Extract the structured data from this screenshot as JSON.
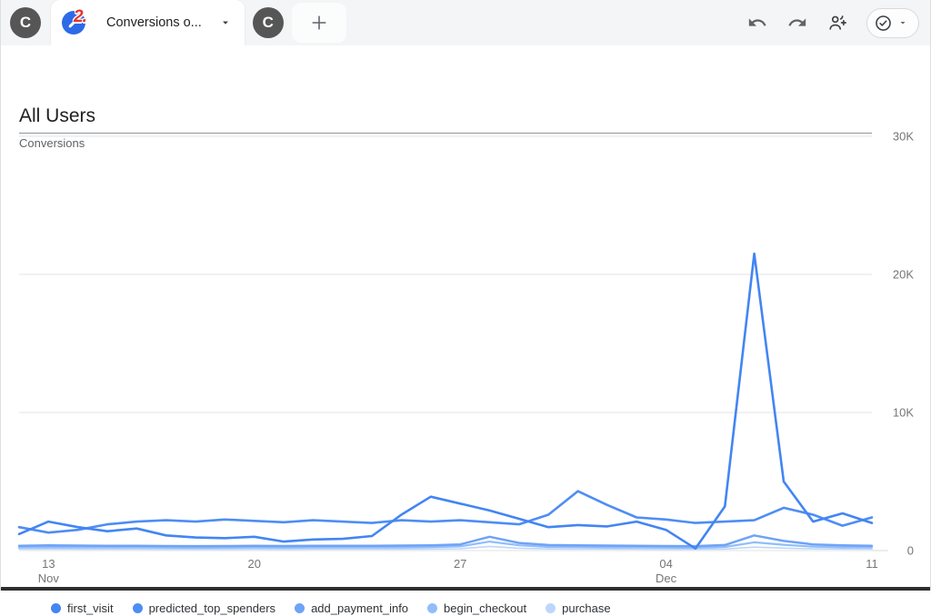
{
  "tabbar": {
    "avatar1": "C",
    "avatar2": "C",
    "tab": {
      "badge": "2.",
      "title": "Conversions o..."
    },
    "new_tab_label": "+",
    "toolbar_icons": [
      "undo",
      "redo",
      "person-add",
      "approval-check",
      "caret-down"
    ]
  },
  "header": {
    "title": "All Users",
    "metric": "Conversions"
  },
  "colors": {
    "tab_bar_bg": "#F3F5F6",
    "favicon_bg": "#2E6AE8",
    "badge_red": "#E5352B",
    "gridline": "#E3E3E3",
    "axis_text": "#757575"
  },
  "chart_data": {
    "type": "line",
    "title": "",
    "xlabel": "",
    "ylabel": "Conversions",
    "ylim": [
      0,
      30000
    ],
    "grid": "horizontal",
    "legend_position": "bottom",
    "x": [
      "Nov 12",
      "Nov 13",
      "Nov 14",
      "Nov 15",
      "Nov 16",
      "Nov 17",
      "Nov 18",
      "Nov 19",
      "Nov 20",
      "Nov 21",
      "Nov 22",
      "Nov 23",
      "Nov 24",
      "Nov 25",
      "Nov 26",
      "Nov 27",
      "Nov 28",
      "Nov 29",
      "Nov 30",
      "Dec 1",
      "Dec 2",
      "Dec 3",
      "Dec 4",
      "Dec 5",
      "Dec 6",
      "Dec 7",
      "Dec 8",
      "Dec 9",
      "Dec 10",
      "Dec 11"
    ],
    "x_ticks": [
      {
        "index": 1,
        "label": "13",
        "sublabel": "Nov"
      },
      {
        "index": 8,
        "label": "20",
        "sublabel": ""
      },
      {
        "index": 15,
        "label": "27",
        "sublabel": ""
      },
      {
        "index": 22,
        "label": "04",
        "sublabel": "Dec"
      },
      {
        "index": 29,
        "label": "11",
        "sublabel": ""
      }
    ],
    "y_ticks": [
      {
        "value": 0,
        "label": "0"
      },
      {
        "value": 10000,
        "label": "10K"
      },
      {
        "value": 20000,
        "label": "20K"
      },
      {
        "value": 30000,
        "label": "30K"
      }
    ],
    "series": [
      {
        "name": "first_visit",
        "color": "#4285F4",
        "values": [
          1200,
          2100,
          1700,
          1400,
          1600,
          1100,
          950,
          900,
          1000,
          650,
          800,
          850,
          1050,
          2600,
          3900,
          3400,
          2900,
          2300,
          1700,
          1850,
          1750,
          2100,
          1500,
          150,
          3200,
          21500,
          5000,
          2100,
          2700,
          2000
        ]
      },
      {
        "name": "predicted_top_spenders",
        "color": "#4E8DF5",
        "values": [
          1700,
          1300,
          1500,
          1900,
          2100,
          2200,
          2100,
          2250,
          2150,
          2050,
          2200,
          2100,
          2000,
          2200,
          2100,
          2200,
          2050,
          1900,
          2600,
          4300,
          3300,
          2400,
          2250,
          2000,
          2100,
          2200,
          3100,
          2600,
          1800,
          2400
        ]
      },
      {
        "name": "add_payment_info",
        "color": "#6FA3F7",
        "values": [
          350,
          380,
          360,
          340,
          350,
          330,
          320,
          330,
          340,
          330,
          340,
          350,
          340,
          360,
          380,
          450,
          1000,
          550,
          400,
          380,
          360,
          350,
          330,
          320,
          400,
          1100,
          700,
          450,
          380,
          350
        ]
      },
      {
        "name": "begin_checkout",
        "color": "#92BDF9",
        "values": [
          220,
          240,
          230,
          220,
          230,
          210,
          200,
          210,
          220,
          210,
          220,
          230,
          220,
          230,
          250,
          300,
          650,
          380,
          260,
          250,
          240,
          230,
          210,
          200,
          260,
          600,
          420,
          280,
          240,
          220
        ]
      },
      {
        "name": "purchase",
        "color": "#BCD7FB",
        "values": [
          100,
          110,
          105,
          100,
          105,
          95,
          90,
          95,
          100,
          95,
          100,
          105,
          100,
          105,
          110,
          130,
          300,
          170,
          120,
          115,
          110,
          105,
          95,
          90,
          115,
          250,
          180,
          125,
          110,
          100
        ]
      }
    ]
  }
}
